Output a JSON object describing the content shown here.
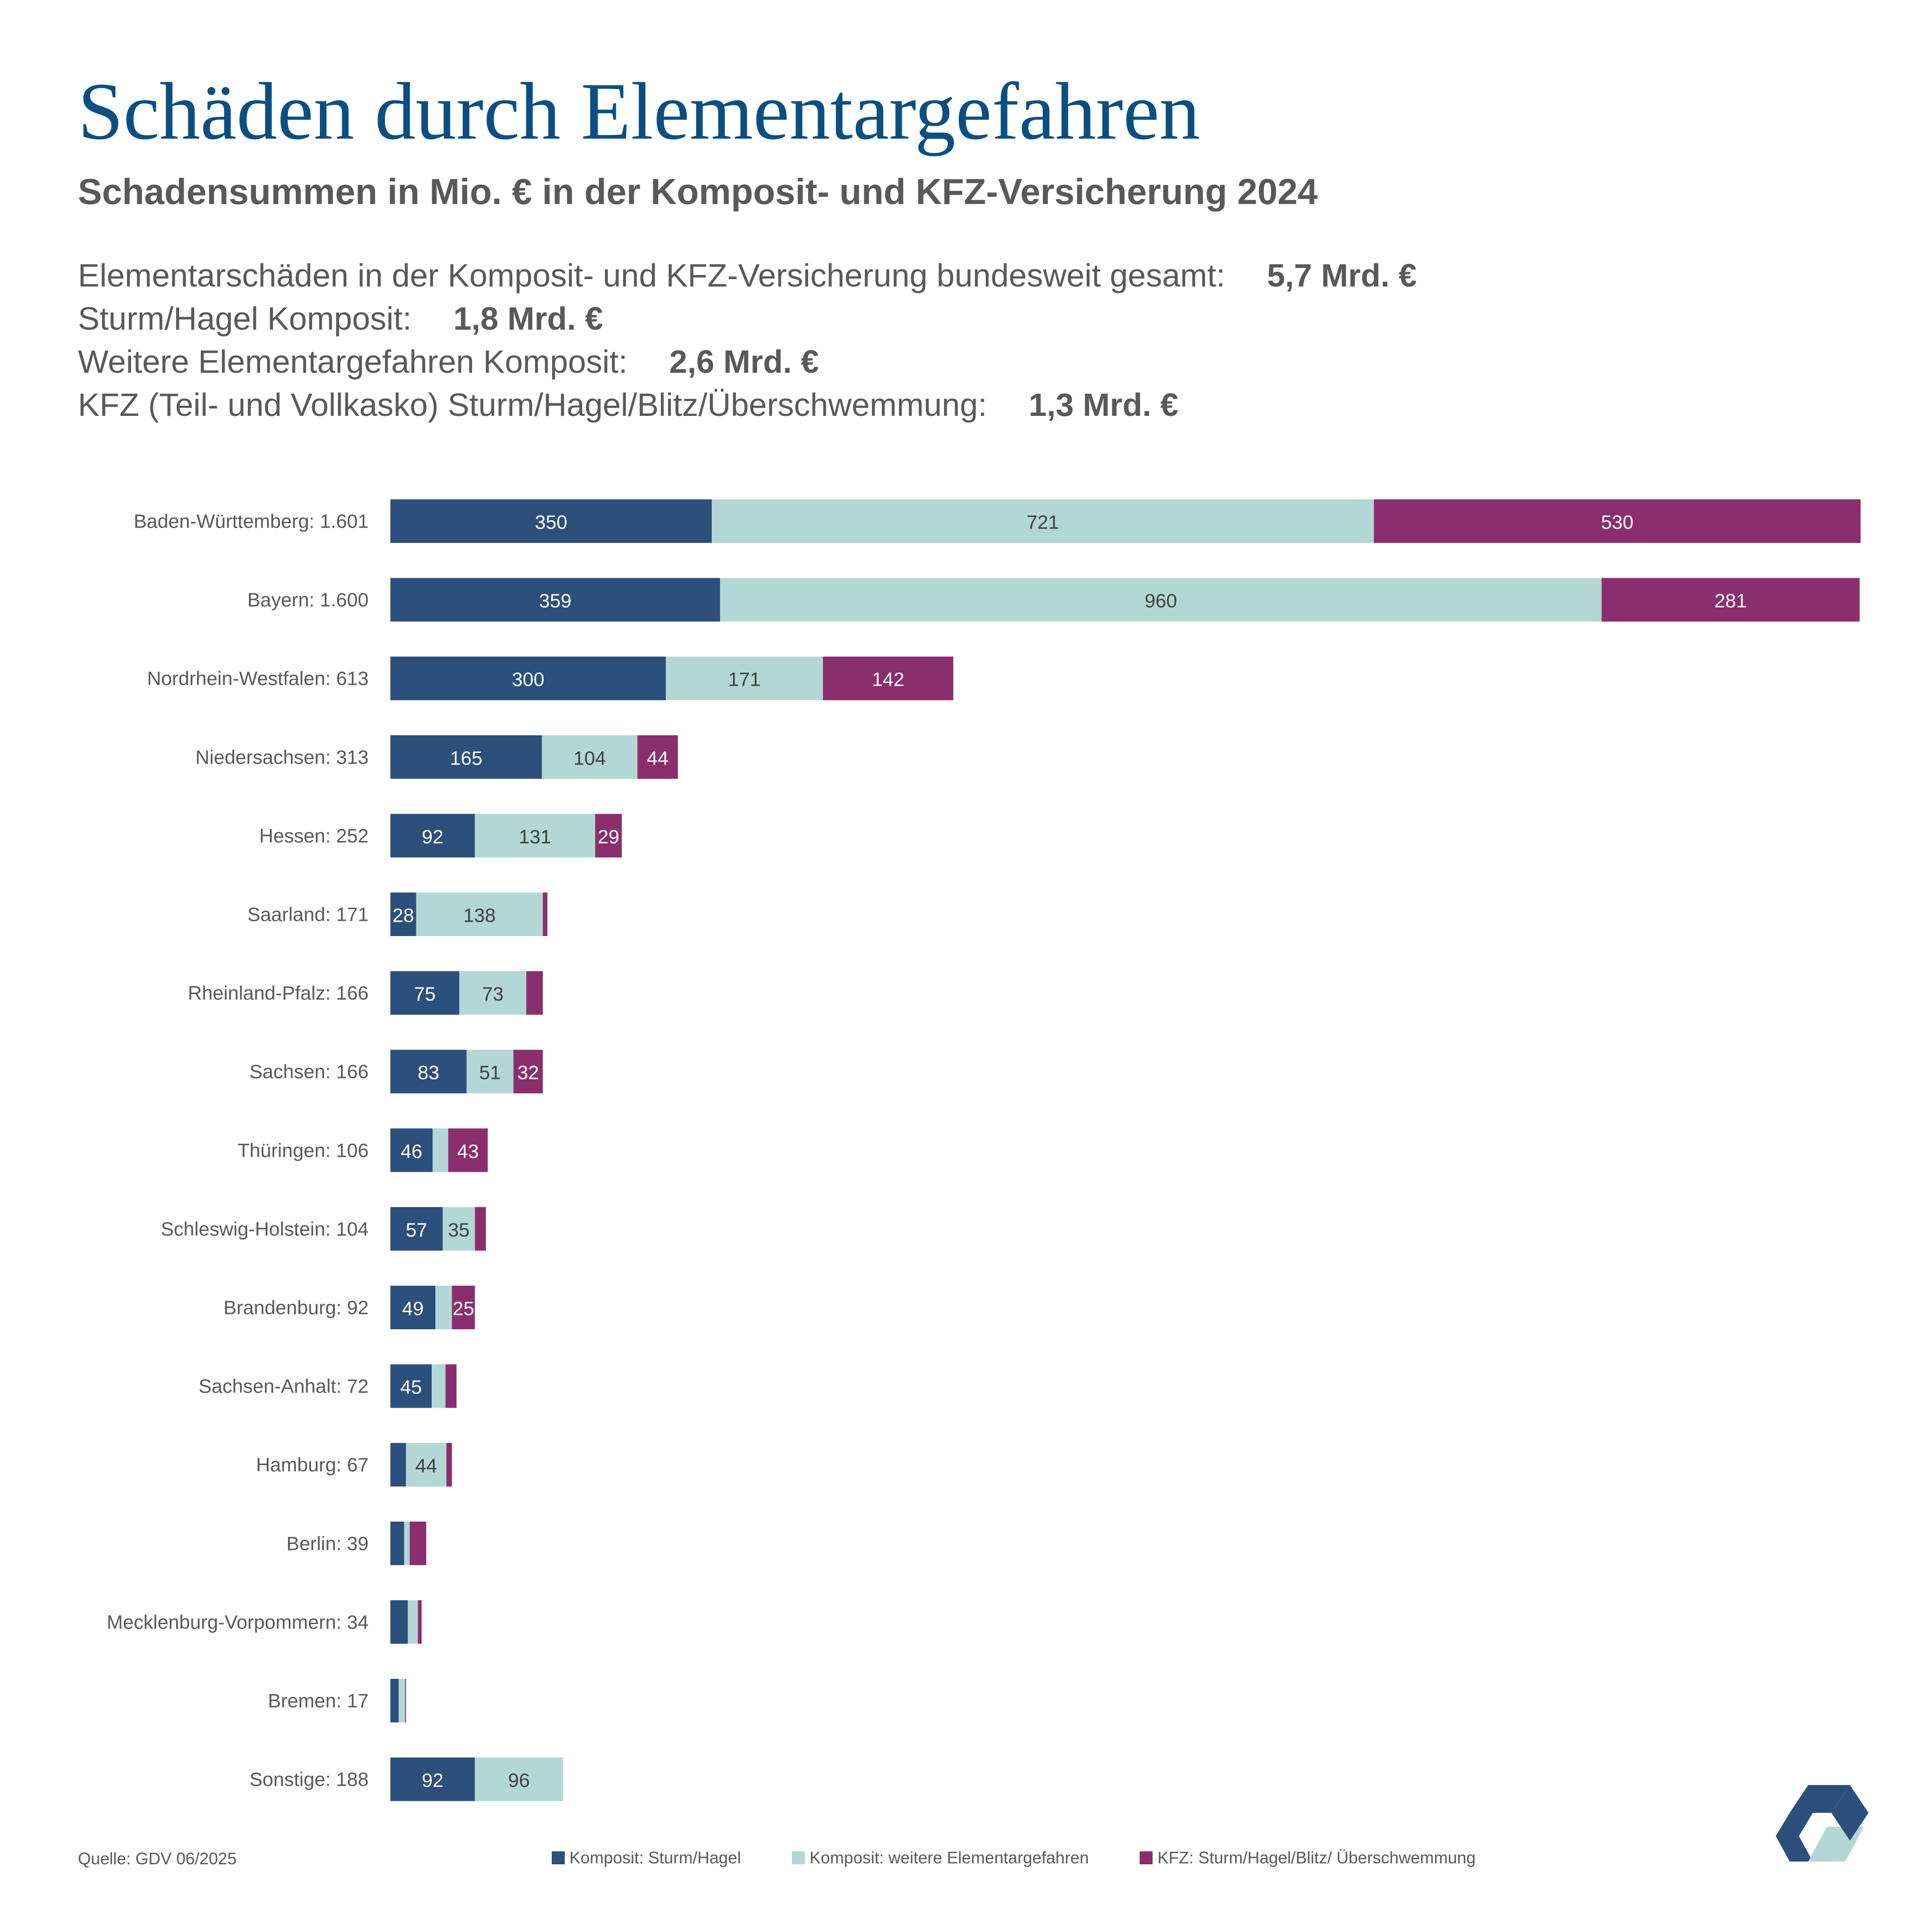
{
  "title": "Schäden durch Elementargefahren",
  "subtitle": "Schadensummen in Mio. € in der Komposit- und KFZ-Versicherung 2024",
  "summary": [
    {
      "label": "Elementarschäden in der Komposit- und KFZ-Versicherung bundesweit gesamt:",
      "value": "5,7 Mrd. €"
    },
    {
      "label": "Sturm/Hagel Komposit:",
      "value": "1,8 Mrd. €"
    },
    {
      "label": "Weitere Elementargefahren Komposit:",
      "value": "2,6 Mrd. €"
    },
    {
      "label": "KFZ (Teil- und Vollkasko) Sturm/Hagel/Blitz/Überschwemmung:",
      "value": "1,3 Mrd. €"
    }
  ],
  "source": "Quelle: GDV 06/2025",
  "colors": {
    "title": "#0b4f82",
    "sturm_hagel": "#2c4f7c",
    "weitere": "#b3d7d5",
    "kfz": "#8b2e6e",
    "text": "#595959"
  },
  "logo_icon": "gdv-logo-icon",
  "chart_data": {
    "type": "bar",
    "orientation": "horizontal",
    "stacked": true,
    "categories": [
      "Baden-Württemberg",
      "Bayern",
      "Nordrhein-Westfalen",
      "Niedersachsen",
      "Hessen",
      "Saarland",
      "Rheinland-Pfalz",
      "Sachsen",
      "Thüringen",
      "Schleswig-Holstein",
      "Brandenburg",
      "Sachsen-Anhalt",
      "Hamburg",
      "Berlin",
      "Mecklenburg-Vorpommern",
      "Bremen",
      "Sonstige"
    ],
    "category_labels": [
      "Baden-Württemberg:  1.601",
      "Bayern:  1.600",
      "Nordrhein-Westfalen:  613",
      "Niedersachsen:  313",
      "Hessen:  252",
      "Saarland:  171",
      "Rheinland-Pfalz:  166",
      "Sachsen:  166",
      "Thüringen:  106",
      "Schleswig-Holstein:  104",
      "Brandenburg:  92",
      "Sachsen-Anhalt:  72",
      "Hamburg:  67",
      "Berlin:  39",
      "Mecklenburg-Vorpommern:  34",
      "Bremen:  17",
      "Sonstige:  188"
    ],
    "series": [
      {
        "name": "Komposit: Sturm/Hagel",
        "color": "#2c4f7c",
        "label_color": "#ffffff",
        "values": [
          350,
          359,
          300,
          165,
          92,
          28,
          75,
          83,
          46,
          57,
          49,
          45,
          17,
          15,
          19,
          9,
          92
        ],
        "labels": [
          "350",
          "359",
          "300",
          "165",
          "92",
          "28",
          "75",
          "83",
          "46",
          "57",
          "49",
          "45",
          "",
          "",
          "",
          "",
          "92"
        ]
      },
      {
        "name": "Komposit: weitere Elementargefahren",
        "color": "#b3d7d5",
        "label_color": "#404040",
        "values": [
          721,
          960,
          171,
          104,
          131,
          138,
          73,
          51,
          17,
          35,
          18,
          15,
          44,
          6,
          11,
          7,
          96
        ],
        "labels": [
          "721",
          "960",
          "171",
          "104",
          "131",
          "138",
          "73",
          "51",
          "",
          "35",
          "",
          "",
          "44",
          "",
          "",
          "",
          "96"
        ]
      },
      {
        "name": "KFZ: Sturm/Hagel/Blitz/ Überschwemmung",
        "color": "#8b2e6e",
        "label_color": "#ffffff",
        "values": [
          530,
          281,
          142,
          44,
          29,
          5,
          18,
          32,
          43,
          12,
          25,
          12,
          6,
          18,
          4,
          1,
          0
        ],
        "labels": [
          "530",
          "281",
          "142",
          "44",
          "29",
          "",
          "",
          "32",
          "43",
          "",
          "25",
          "",
          "",
          "",
          "",
          "",
          ""
        ]
      }
    ],
    "xlim": [
      0,
      1601
    ],
    "grid": false,
    "legend": "bottom"
  }
}
